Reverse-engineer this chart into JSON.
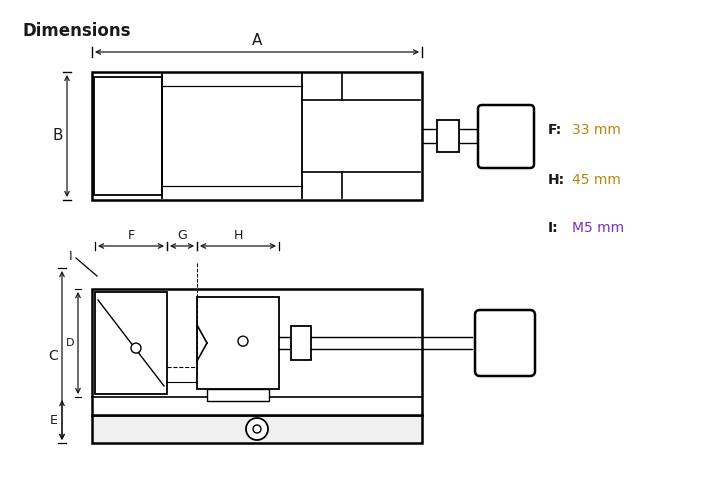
{
  "title": "Dimensions",
  "title_fontsize": 12,
  "dim_labels": [
    {
      "label": "F:",
      "value": "33 mm",
      "color_label": "#1a1a1a",
      "color_value": "#b8860b"
    },
    {
      "label": "H:",
      "value": "45 mm",
      "color_label": "#1a1a1a",
      "color_value": "#b8860b"
    },
    {
      "label": "I:",
      "value": "M5 mm",
      "color_label": "#1a1a1a",
      "color_value": "#7b2fbe"
    }
  ],
  "line_color": "#1a1a1a",
  "bg_color": "#ffffff",
  "figsize": [
    7.04,
    4.87
  ],
  "dpi": 100
}
